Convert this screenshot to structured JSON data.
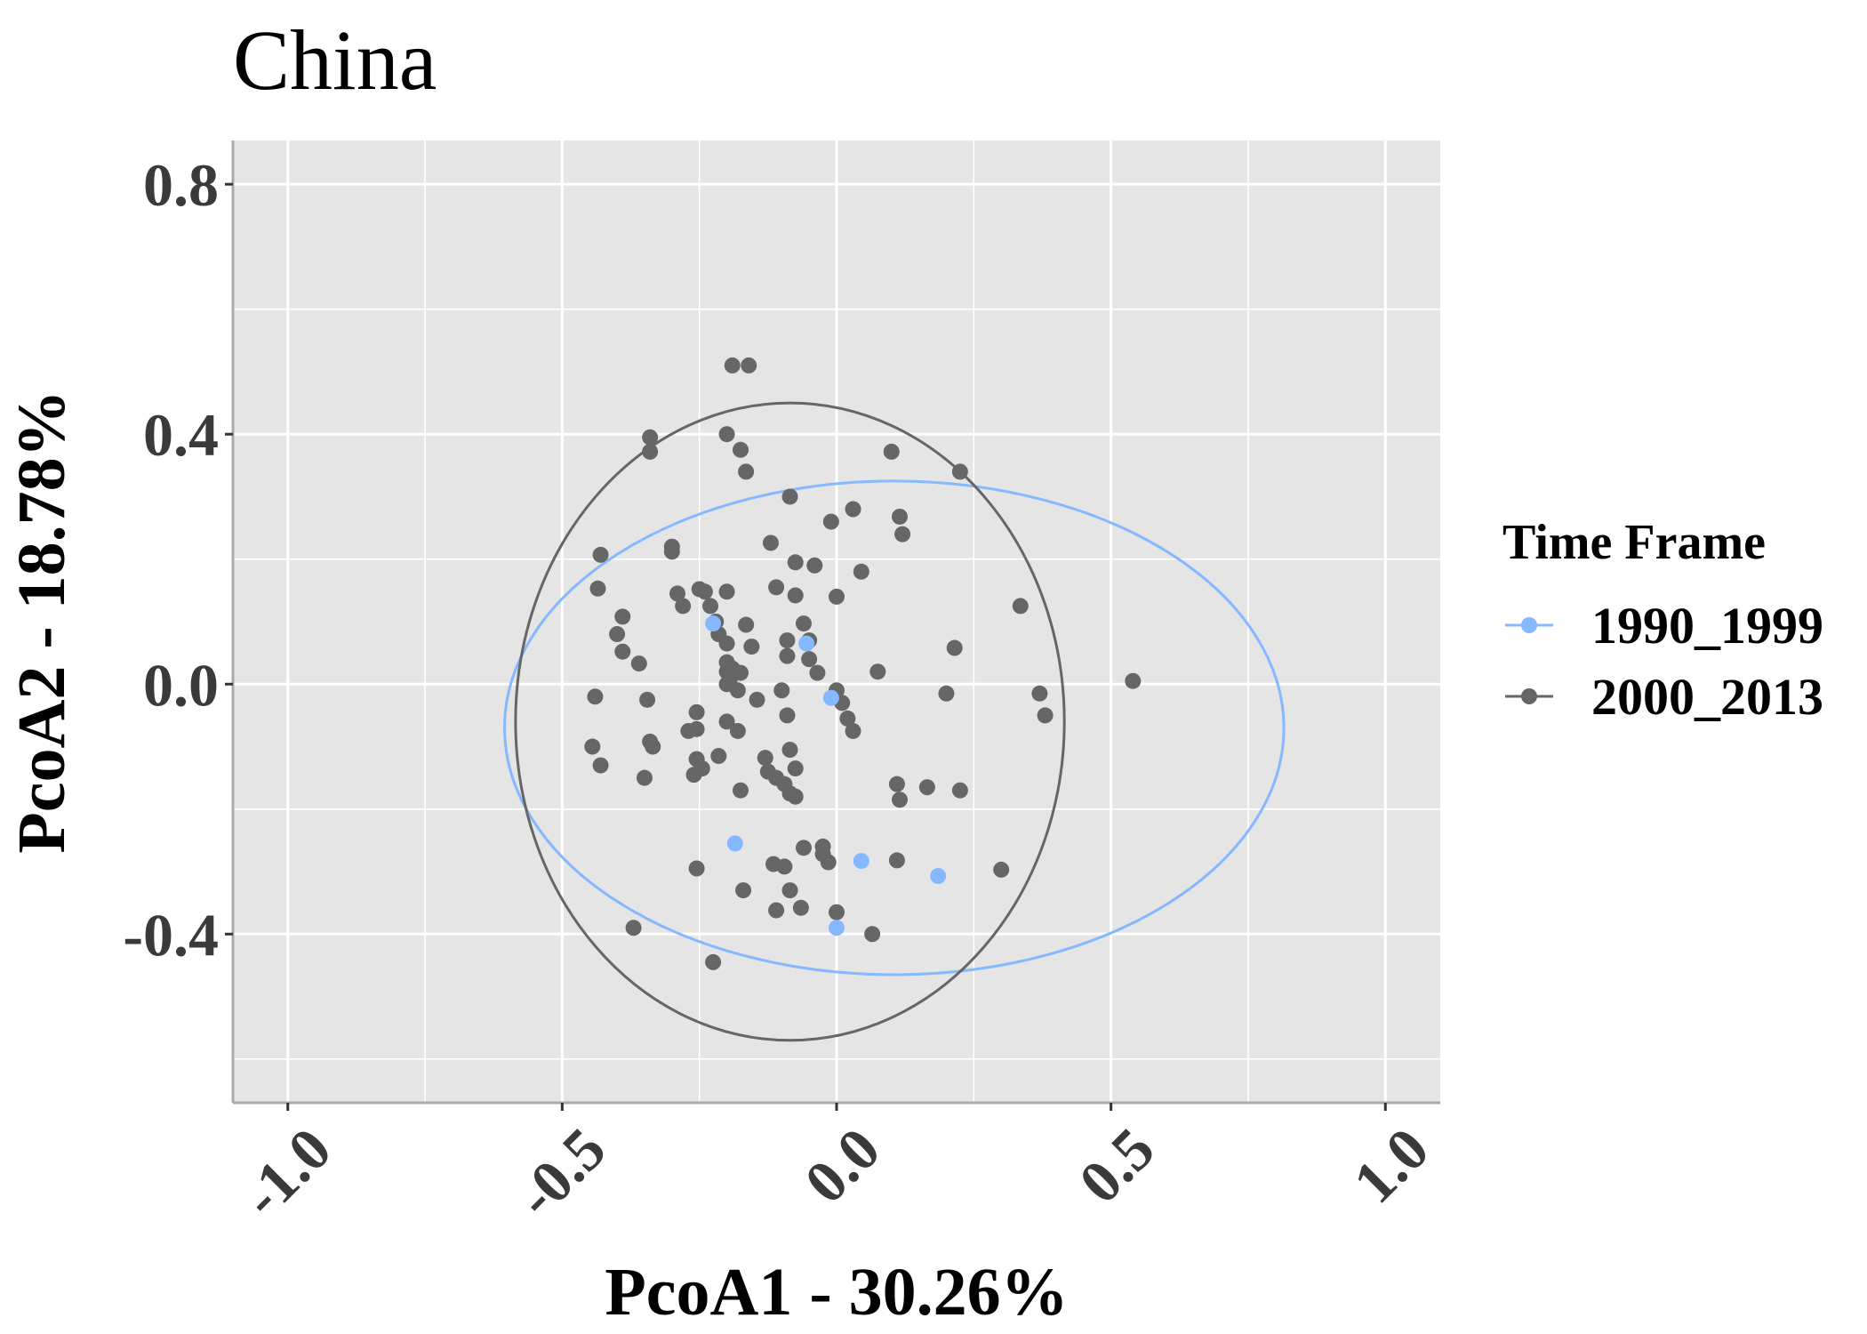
{
  "chart_data": {
    "type": "scatter",
    "title": "China",
    "xlabel": "PcoA1 - 30.26%",
    "ylabel": "PcoA2 - 18.78%",
    "xlim": [
      -1.1,
      1.1
    ],
    "ylim": [
      -0.67,
      0.87
    ],
    "x_ticks": [
      -1.0,
      -0.5,
      0.0,
      0.5,
      1.0
    ],
    "x_tick_labels": [
      "-1.0",
      "-0.5",
      "0.0",
      "0.5",
      "1.0"
    ],
    "y_ticks": [
      -0.4,
      0.0,
      0.4,
      0.8
    ],
    "y_tick_labels": [
      "-0.4",
      "0.0",
      "0.4",
      "0.8"
    ],
    "x_minor": [
      -0.75,
      -0.25,
      0.25,
      0.75
    ],
    "y_minor": [
      -0.6,
      -0.2,
      0.2,
      0.6
    ],
    "grid": true,
    "legend": {
      "title": "Time Frame",
      "position": "right"
    },
    "series": [
      {
        "name": "1990_1999",
        "color": "#85b8ff",
        "points": [
          [
            -0.225,
            0.097
          ],
          [
            -0.055,
            0.065
          ],
          [
            -0.01,
            -0.022
          ],
          [
            -0.185,
            -0.255
          ],
          [
            0.045,
            -0.283
          ],
          [
            0.185,
            -0.307
          ],
          [
            0.0,
            -0.39
          ]
        ],
        "ellipse": {
          "cx": 0.105,
          "cy": -0.07,
          "rx": 0.71,
          "ry": 0.395
        }
      },
      {
        "name": "2000_2013",
        "color": "#666666",
        "points": [
          [
            -0.19,
            0.51
          ],
          [
            -0.16,
            0.51
          ],
          [
            -0.34,
            0.395
          ],
          [
            -0.34,
            0.372
          ],
          [
            -0.2,
            0.4
          ],
          [
            -0.175,
            0.375
          ],
          [
            -0.165,
            0.34
          ],
          [
            0.1,
            0.372
          ],
          [
            0.225,
            0.34
          ],
          [
            -0.085,
            0.3
          ],
          [
            0.03,
            0.28
          ],
          [
            0.115,
            0.268
          ],
          [
            -0.01,
            0.26
          ],
          [
            0.12,
            0.24
          ],
          [
            -0.3,
            0.22
          ],
          [
            -0.3,
            0.212
          ],
          [
            -0.12,
            0.226
          ],
          [
            -0.43,
            0.207
          ],
          [
            -0.075,
            0.195
          ],
          [
            -0.04,
            0.19
          ],
          [
            0.045,
            0.18
          ],
          [
            -0.11,
            0.155
          ],
          [
            -0.435,
            0.153
          ],
          [
            -0.25,
            0.152
          ],
          [
            -0.24,
            0.148
          ],
          [
            -0.2,
            0.148
          ],
          [
            -0.29,
            0.145
          ],
          [
            -0.075,
            0.142
          ],
          [
            0.0,
            0.14
          ],
          [
            -0.28,
            0.125
          ],
          [
            -0.23,
            0.125
          ],
          [
            0.335,
            0.125
          ],
          [
            -0.39,
            0.108
          ],
          [
            -0.22,
            0.1
          ],
          [
            -0.165,
            0.095
          ],
          [
            -0.06,
            0.097
          ],
          [
            -0.4,
            0.08
          ],
          [
            -0.215,
            0.08
          ],
          [
            -0.2,
            0.065
          ],
          [
            -0.09,
            0.07
          ],
          [
            -0.05,
            0.07
          ],
          [
            -0.155,
            0.06
          ],
          [
            0.215,
            0.058
          ],
          [
            -0.39,
            0.052
          ],
          [
            -0.09,
            0.045
          ],
          [
            -0.05,
            0.04
          ],
          [
            -0.36,
            0.033
          ],
          [
            -0.2,
            0.035
          ],
          [
            -0.19,
            0.025
          ],
          [
            -0.2,
            0.02
          ],
          [
            -0.175,
            0.018
          ],
          [
            -0.035,
            0.018
          ],
          [
            0.075,
            0.02
          ],
          [
            -0.195,
            0.005
          ],
          [
            -0.2,
            0.0
          ],
          [
            -0.18,
            -0.01
          ],
          [
            -0.1,
            -0.01
          ],
          [
            0.0,
            -0.01
          ],
          [
            0.37,
            -0.015
          ],
          [
            0.2,
            -0.015
          ],
          [
            -0.44,
            -0.02
          ],
          [
            -0.345,
            -0.025
          ],
          [
            -0.145,
            -0.025
          ],
          [
            0.01,
            -0.03
          ],
          [
            0.54,
            0.005
          ],
          [
            -0.255,
            -0.045
          ],
          [
            -0.09,
            -0.05
          ],
          [
            0.02,
            -0.055
          ],
          [
            -0.2,
            -0.06
          ],
          [
            0.38,
            -0.05
          ],
          [
            -0.27,
            -0.075
          ],
          [
            -0.255,
            -0.072
          ],
          [
            -0.18,
            -0.075
          ],
          [
            0.03,
            -0.075
          ],
          [
            -0.34,
            -0.092
          ],
          [
            -0.335,
            -0.1
          ],
          [
            -0.445,
            -0.1
          ],
          [
            -0.085,
            -0.105
          ],
          [
            -0.215,
            -0.115
          ],
          [
            -0.255,
            -0.12
          ],
          [
            -0.13,
            -0.118
          ],
          [
            -0.43,
            -0.13
          ],
          [
            -0.245,
            -0.135
          ],
          [
            -0.125,
            -0.14
          ],
          [
            -0.075,
            -0.135
          ],
          [
            -0.35,
            -0.15
          ],
          [
            -0.26,
            -0.145
          ],
          [
            -0.11,
            -0.15
          ],
          [
            -0.095,
            -0.16
          ],
          [
            0.11,
            -0.16
          ],
          [
            0.165,
            -0.165
          ],
          [
            0.225,
            -0.17
          ],
          [
            -0.175,
            -0.17
          ],
          [
            -0.085,
            -0.175
          ],
          [
            -0.075,
            -0.18
          ],
          [
            0.115,
            -0.185
          ],
          [
            -0.025,
            -0.26
          ],
          [
            -0.06,
            -0.262
          ],
          [
            -0.025,
            -0.272
          ],
          [
            -0.015,
            -0.285
          ],
          [
            -0.115,
            -0.288
          ],
          [
            -0.095,
            -0.292
          ],
          [
            0.11,
            -0.282
          ],
          [
            -0.255,
            -0.295
          ],
          [
            0.3,
            -0.297
          ],
          [
            -0.17,
            -0.33
          ],
          [
            -0.085,
            -0.33
          ],
          [
            -0.11,
            -0.362
          ],
          [
            -0.065,
            -0.358
          ],
          [
            0.0,
            -0.365
          ],
          [
            -0.37,
            -0.39
          ],
          [
            0.065,
            -0.4
          ],
          [
            -0.225,
            -0.445
          ]
        ],
        "ellipse": {
          "cx": -0.085,
          "cy": -0.06,
          "rx": 0.5,
          "ry": 0.51
        }
      }
    ]
  }
}
